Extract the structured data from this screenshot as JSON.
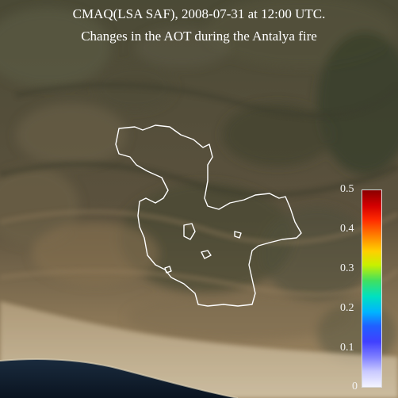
{
  "title": {
    "line1": "CMAQ(LSA SAF), 2008-07-31 at 12:00 UTC.",
    "line2": "Changes in the AOT during the Antalya fire"
  },
  "colorbar": {
    "min": 0,
    "max": 0.5,
    "ticks": [
      "0.5",
      "0.4",
      "0.3",
      "0.2",
      "0.1",
      "0"
    ],
    "colors": [
      "#8b0000",
      "#d40000",
      "#ff2a00",
      "#ff7f00",
      "#ffd000",
      "#c8f000",
      "#40e060",
      "#00e0c0",
      "#00b4ff",
      "#2060ff",
      "#4040ff",
      "#8080ff",
      "#c8c8ff",
      "#f4f4ff"
    ]
  },
  "palette": {
    "outline": "#ffffff",
    "sea": "#0e1a2a",
    "coast": "#c8b896"
  }
}
